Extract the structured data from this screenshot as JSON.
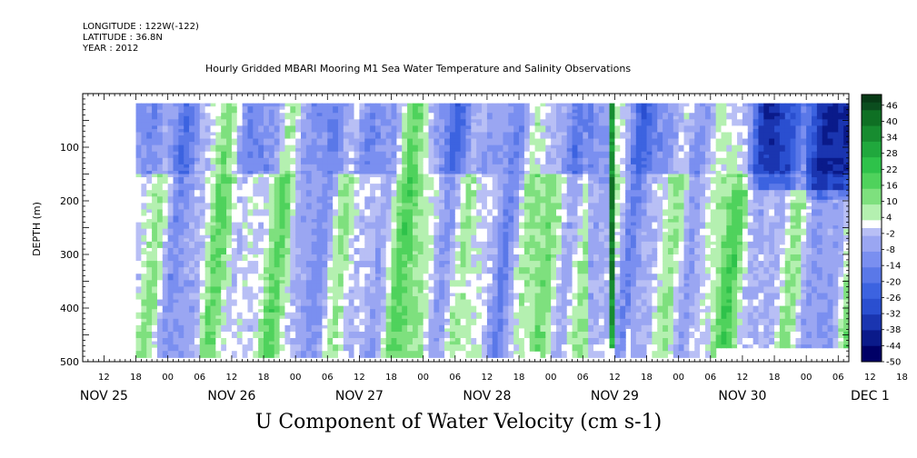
{
  "header": {
    "longitude": "LONGITUDE : 122W(-122)",
    "latitude": "LATITUDE : 36.8N",
    "year": "YEAR : 2012"
  },
  "chart_data": {
    "type": "heatmap",
    "title": "Hourly Gridded MBARI Mooring M1 Sea Water Temperature and Salinity Observations",
    "xlabel": "U Component of Water Velocity (cm s-1)",
    "ylabel": "DEPTH (m)",
    "x_range_hours": [
      0,
      144
    ],
    "x_start": "NOV 25 08:00",
    "x_hour_ticks": [
      "12",
      "18",
      "00",
      "06",
      "12",
      "18",
      "00",
      "06",
      "12",
      "18",
      "00",
      "06",
      "12",
      "18",
      "00",
      "06",
      "12",
      "18",
      "00",
      "06",
      "12",
      "18",
      "00",
      "06",
      "12",
      "18",
      "00",
      "06"
    ],
    "x_day_labels": [
      "NOV 25",
      "NOV 26",
      "NOV 27",
      "NOV 28",
      "NOV 29",
      "NOV 30",
      "DEC  1"
    ],
    "y_ticks": [
      "100",
      "200",
      "300",
      "400",
      "500"
    ],
    "ylim": [
      500,
      0
    ],
    "colorbar": {
      "labels": [
        "46",
        "40",
        "34",
        "28",
        "22",
        "16",
        "10",
        "4",
        "-2",
        "-8",
        "-14",
        "-20",
        "-26",
        "-32",
        "-38",
        "-44",
        "-50"
      ],
      "range": [
        -50,
        50
      ],
      "step": 3
    },
    "grid": false,
    "colors": {
      "strong_positive": "#0b4d1e",
      "positive": "#22c24a",
      "weak_positive": "#9be89c",
      "weak_negative": "#a9a9f0",
      "negative": "#5a6fe8",
      "strong_negative": "#0a1a8a"
    }
  }
}
